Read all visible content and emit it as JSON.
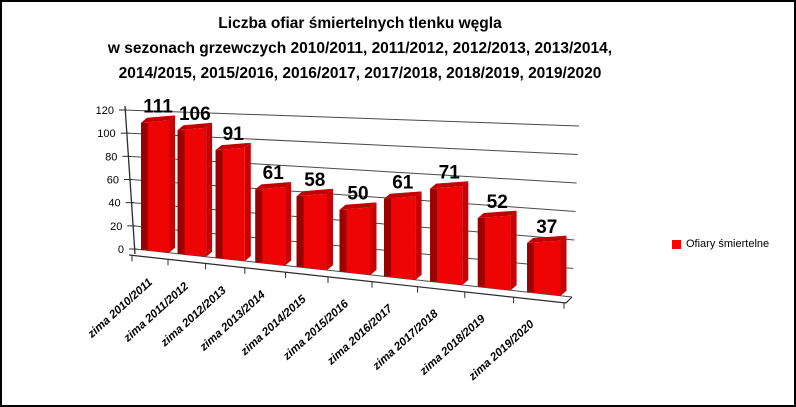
{
  "chart_data": {
    "type": "bar",
    "variant": "3d-column",
    "title": "Liczba ofiar śmiertelnych tlenku węgla w sezonach grzewczych 2010/2011, 2011/2012, 2012/2013, 2013/2014, 2014/2015, 2015/2016, 2016/2017, 2017/2018, 2018/2019, 2019/2020",
    "title_lines": [
      "Liczba ofiar śmiertelnych tlenku węgla",
      "w sezonach grzewczych 2010/2011, 2011/2012, 2012/2013, 2013/2014,",
      "2014/2015, 2015/2016, 2016/2017, 2017/2018, 2018/2019, 2019/2020"
    ],
    "categories": [
      "zima 2010/2011",
      "zima 2011/2012",
      "zima 2012/2013",
      "zima 2013/2014",
      "zima 2014/2015",
      "zima 2015/2016",
      "zima 2016/2017",
      "zima 2017/2018",
      "zima 2018/2019",
      "zima 2019/2020"
    ],
    "series": [
      {
        "name": "Ofiary śmiertelne",
        "values": [
          111,
          106,
          91,
          61,
          58,
          50,
          61,
          71,
          52,
          37
        ]
      }
    ],
    "data_labels_visible": true,
    "xlabel": "",
    "ylabel": "",
    "ylim": [
      0,
      120
    ],
    "yticks": [
      0,
      20,
      40,
      60,
      80,
      100,
      120
    ],
    "grid": true,
    "legend_position": "right",
    "colors": {
      "bar_front": "#EE0404",
      "bar_side": "#9A0000",
      "bar_top": "#C00000",
      "bar_right": "#C80202",
      "legend_marker": "#FF0000",
      "gridline": "#4A4A4A",
      "axis": "#2B2B2B",
      "text": "#000000",
      "background": "#FFFFFF",
      "border": "#000000"
    }
  }
}
